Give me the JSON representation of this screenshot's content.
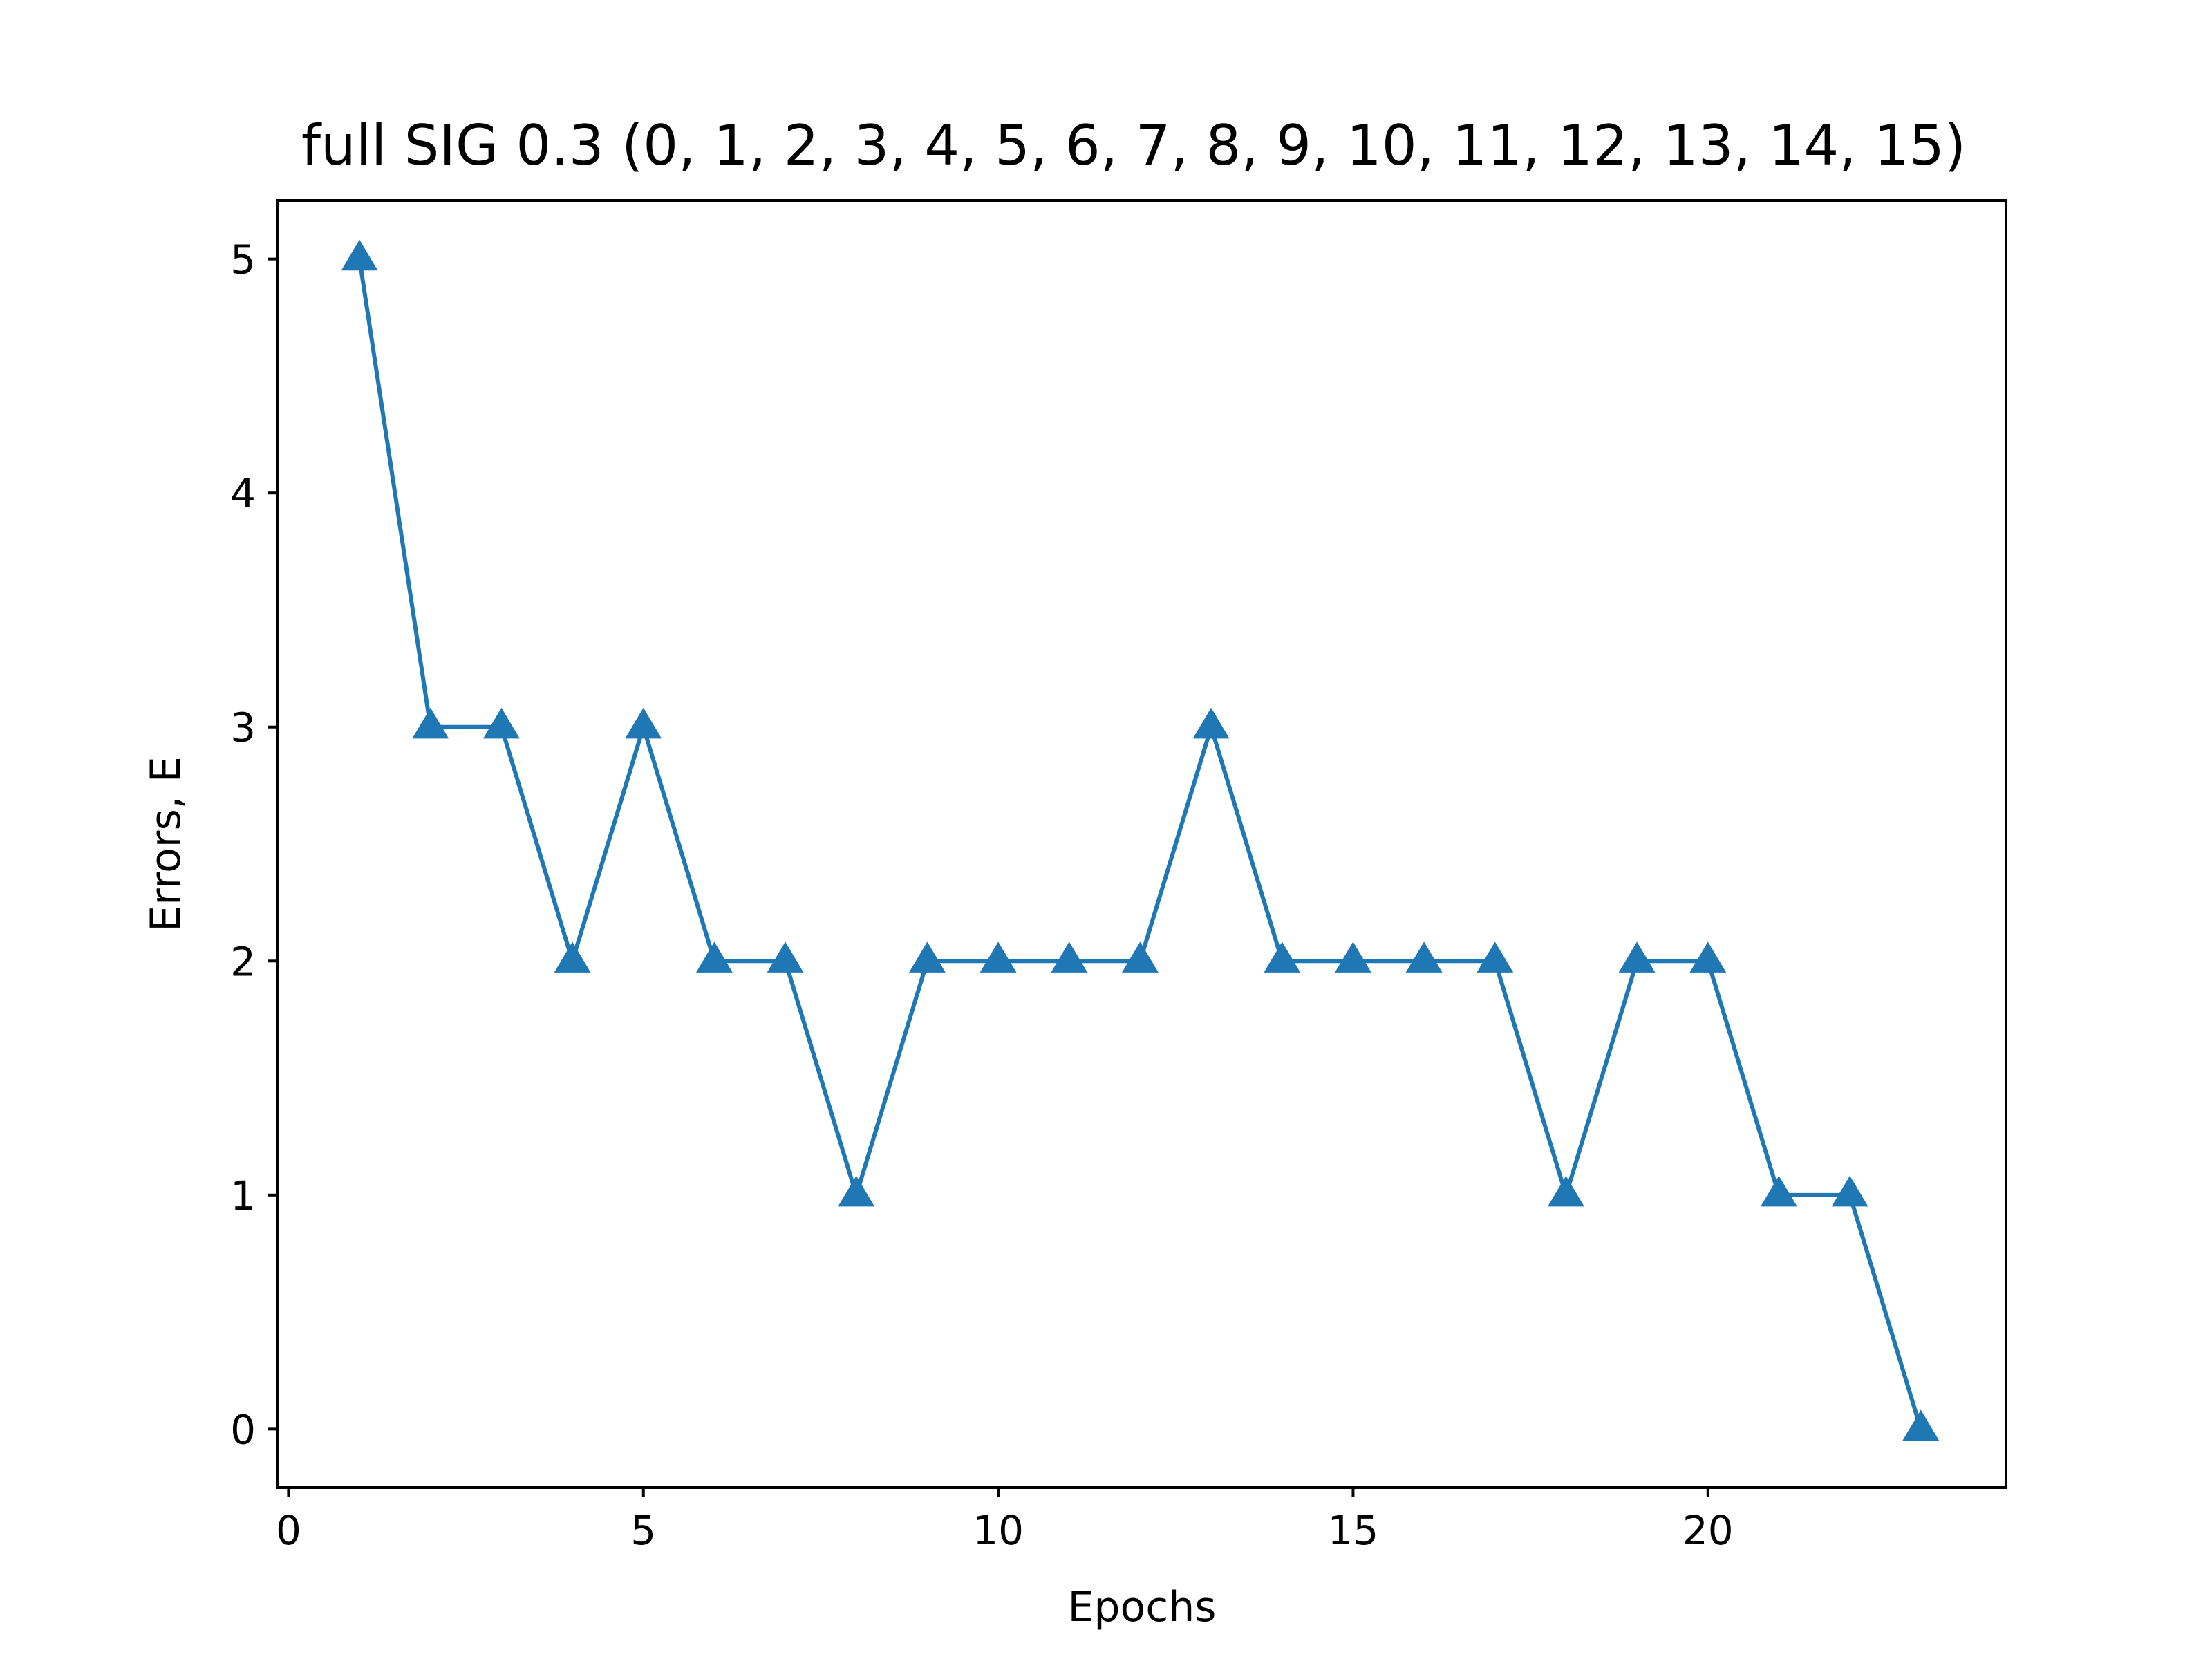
{
  "chart_data": {
    "type": "line",
    "title": "full SIG 0.3 (0, 1, 2, 3, 4, 5, 6, 7, 8, 9, 10, 11, 12, 13, 14, 15)",
    "xlabel": "Epochs",
    "ylabel": "Errors, E",
    "xlim": [
      -0.15,
      24.2
    ],
    "ylim": [
      -0.25,
      5.25
    ],
    "xticks": [
      0,
      5,
      10,
      15,
      20
    ],
    "yticks": [
      0,
      1,
      2,
      3,
      4,
      5
    ],
    "grid": false,
    "marker": "triangle-up",
    "series": [
      {
        "color": "#1f77b4",
        "x": [
          1,
          2,
          3,
          4,
          5,
          6,
          7,
          8,
          9,
          10,
          11,
          12,
          13,
          14,
          15,
          16,
          17,
          18,
          19,
          20,
          21,
          22,
          23
        ],
        "y": [
          5,
          3,
          3,
          2,
          3,
          2,
          2,
          1,
          2,
          2,
          2,
          2,
          3,
          2,
          2,
          2,
          2,
          1,
          2,
          2,
          1,
          1,
          0
        ]
      }
    ]
  }
}
